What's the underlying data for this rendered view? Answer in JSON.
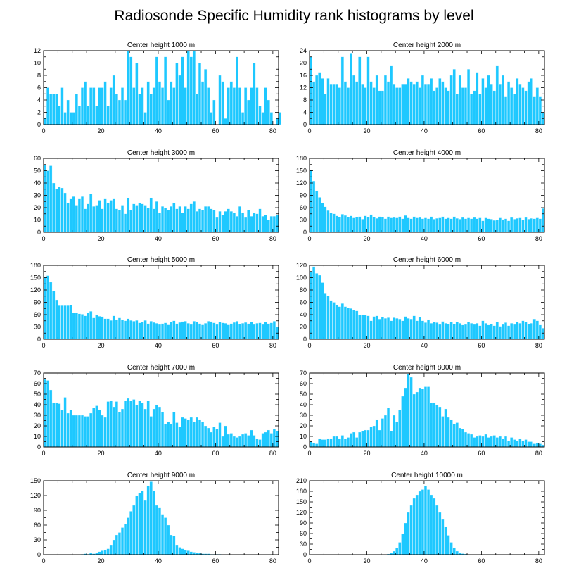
{
  "figure": {
    "title": "Radiosonde Specific Humidity rank histograms by level",
    "bar_color": "#1ec8ff",
    "bar_edge_color": "#e8f8ff"
  },
  "chart_data": [
    {
      "type": "bar",
      "title": "Center height 1000 m",
      "xlim": [
        0,
        82
      ],
      "ylim": [
        0,
        12
      ],
      "xticks": [
        0,
        20,
        40,
        60,
        80
      ],
      "yticks": [
        0,
        2,
        4,
        6,
        8,
        10,
        12
      ],
      "values": [
        1,
        6,
        5,
        5,
        5,
        3,
        6,
        2,
        4,
        2,
        2,
        5,
        3,
        6,
        7,
        3,
        6,
        6,
        3,
        6,
        6,
        7,
        3,
        6,
        8,
        5,
        4,
        6,
        4,
        12,
        11,
        6,
        10,
        5,
        6,
        2,
        7,
        5,
        6,
        11,
        7,
        6,
        11,
        4,
        7,
        6,
        10,
        8,
        11,
        6,
        12,
        11,
        12,
        5,
        10,
        7,
        9,
        6,
        2,
        4,
        0,
        8,
        7,
        1,
        6,
        7,
        6,
        11,
        6,
        2,
        6,
        4,
        6,
        10,
        6,
        3,
        2,
        6,
        4,
        2,
        0,
        1,
        2
      ]
    },
    {
      "type": "bar",
      "title": "Center height 2000 m",
      "xlim": [
        0,
        82
      ],
      "ylim": [
        0,
        24
      ],
      "xticks": [
        0,
        20,
        40,
        60,
        80
      ],
      "yticks": [
        0,
        4,
        8,
        12,
        16,
        20,
        24
      ],
      "values": [
        22,
        14,
        16,
        17,
        15,
        10,
        15,
        13,
        13,
        13,
        12,
        22,
        14,
        12,
        23,
        16,
        14,
        22,
        13,
        12,
        22,
        14,
        12,
        16,
        11,
        11,
        16,
        14,
        19,
        13,
        12,
        12,
        13,
        13,
        15,
        14,
        13,
        14,
        12,
        16,
        13,
        13,
        15,
        11,
        12,
        15,
        14,
        12,
        11,
        16,
        18,
        10,
        16,
        12,
        12,
        18,
        10,
        11,
        17,
        10,
        15,
        12,
        16,
        13,
        11,
        19,
        13,
        16,
        9,
        14,
        12,
        10,
        15,
        13,
        12,
        11,
        14,
        15,
        9,
        12,
        9,
        4
      ]
    },
    {
      "type": "bar",
      "title": "Center height 3000 m",
      "xlim": [
        0,
        82
      ],
      "ylim": [
        0,
        60
      ],
      "xticks": [
        0,
        20,
        40,
        60,
        80
      ],
      "yticks": [
        0,
        10,
        20,
        30,
        40,
        50,
        60
      ],
      "values": [
        55,
        50,
        54,
        40,
        35,
        37,
        36,
        32,
        24,
        27,
        29,
        22,
        27,
        29,
        19,
        23,
        31,
        21,
        22,
        26,
        19,
        27,
        24,
        26,
        27,
        19,
        18,
        22,
        15,
        28,
        18,
        23,
        22,
        24,
        23,
        22,
        20,
        28,
        19,
        25,
        16,
        21,
        20,
        18,
        21,
        24,
        19,
        21,
        16,
        21,
        19,
        23,
        25,
        17,
        19,
        18,
        21,
        21,
        19,
        18,
        12,
        17,
        14,
        17,
        19,
        17,
        16,
        13,
        21,
        16,
        12,
        18,
        13,
        16,
        15,
        19,
        13,
        14,
        10,
        13,
        13,
        14
      ]
    },
    {
      "type": "bar",
      "title": "Center height 4000 m",
      "xlim": [
        0,
        82
      ],
      "ylim": [
        0,
        180
      ],
      "xticks": [
        0,
        20,
        40,
        60,
        80
      ],
      "yticks": [
        0,
        30,
        60,
        90,
        120,
        150,
        180
      ],
      "values": [
        152,
        125,
        100,
        85,
        71,
        62,
        53,
        47,
        45,
        40,
        37,
        44,
        41,
        37,
        40,
        35,
        37,
        38,
        32,
        40,
        37,
        43,
        37,
        34,
        38,
        37,
        33,
        38,
        35,
        36,
        35,
        38,
        33,
        41,
        35,
        33,
        38,
        35,
        36,
        33,
        35,
        33,
        38,
        32,
        34,
        35,
        38,
        33,
        35,
        33,
        38,
        34,
        32,
        36,
        33,
        35,
        33,
        36,
        33,
        35,
        28,
        35,
        33,
        32,
        29,
        30,
        35,
        31,
        33,
        28,
        36,
        32,
        34,
        35,
        30,
        36,
        32,
        34,
        33,
        35,
        33,
        58
      ]
    },
    {
      "type": "bar",
      "title": "Center height 5000 m",
      "xlim": [
        0,
        82
      ],
      "ylim": [
        0,
        180
      ],
      "xticks": [
        0,
        20,
        40,
        60,
        80
      ],
      "yticks": [
        0,
        30,
        60,
        90,
        120,
        150,
        180
      ],
      "values": [
        152,
        155,
        139,
        118,
        96,
        82,
        82,
        82,
        82,
        83,
        64,
        65,
        62,
        61,
        57,
        64,
        68,
        52,
        60,
        56,
        55,
        50,
        50,
        46,
        57,
        48,
        52,
        48,
        45,
        50,
        46,
        44,
        46,
        40,
        42,
        46,
        38,
        44,
        41,
        39,
        36,
        38,
        40,
        35,
        42,
        45,
        38,
        41,
        43,
        44,
        39,
        36,
        44,
        42,
        38,
        35,
        39,
        44,
        43,
        40,
        36,
        42,
        40,
        39,
        35,
        38,
        41,
        44,
        37,
        39,
        41,
        38,
        42,
        36,
        39,
        40,
        36,
        42,
        38,
        40,
        44,
        30
      ]
    },
    {
      "type": "bar",
      "title": "Center height 6000 m",
      "xlim": [
        0,
        82
      ],
      "ylim": [
        0,
        120
      ],
      "xticks": [
        0,
        20,
        40,
        60,
        80
      ],
      "yticks": [
        0,
        20,
        40,
        60,
        80,
        100,
        120
      ],
      "values": [
        109,
        118,
        107,
        104,
        92,
        75,
        70,
        63,
        60,
        56,
        53,
        58,
        53,
        51,
        50,
        47,
        46,
        40,
        40,
        39,
        38,
        30,
        37,
        38,
        33,
        36,
        34,
        35,
        30,
        35,
        34,
        33,
        30,
        37,
        34,
        33,
        38,
        30,
        36,
        30,
        27,
        32,
        26,
        28,
        27,
        24,
        29,
        26,
        25,
        28,
        25,
        28,
        26,
        23,
        24,
        28,
        26,
        24,
        26,
        22,
        30,
        26,
        23,
        25,
        22,
        28,
        21,
        24,
        27,
        22,
        26,
        24,
        28,
        26,
        30,
        28,
        25,
        26,
        33,
        30,
        23,
        18
      ]
    },
    {
      "type": "bar",
      "title": "Center height 7000 m",
      "xlim": [
        0,
        82
      ],
      "ylim": [
        0,
        70
      ],
      "xticks": [
        0,
        20,
        40,
        60,
        80
      ],
      "yticks": [
        0,
        10,
        20,
        30,
        40,
        50,
        60,
        70
      ],
      "values": [
        64,
        63,
        54,
        42,
        42,
        41,
        35,
        47,
        32,
        35,
        30,
        30,
        30,
        30,
        29,
        29,
        32,
        37,
        39,
        35,
        30,
        28,
        43,
        44,
        38,
        43,
        33,
        36,
        44,
        46,
        44,
        45,
        40,
        44,
        42,
        36,
        44,
        29,
        36,
        40,
        38,
        33,
        22,
        24,
        22,
        33,
        23,
        19,
        28,
        27,
        26,
        28,
        24,
        28,
        26,
        24,
        20,
        18,
        14,
        19,
        17,
        23,
        10,
        20,
        12,
        13,
        10,
        9,
        10,
        12,
        13,
        11,
        16,
        11,
        8,
        7,
        13,
        14,
        16,
        13,
        17,
        15
      ]
    },
    {
      "type": "bar",
      "title": "Center height 8000 m",
      "xlim": [
        0,
        82
      ],
      "ylim": [
        0,
        70
      ],
      "xticks": [
        0,
        20,
        40,
        60,
        80
      ],
      "yticks": [
        0,
        10,
        20,
        30,
        40,
        50,
        60,
        70
      ],
      "values": [
        5,
        4,
        3,
        8,
        7,
        7,
        8,
        8,
        10,
        10,
        8,
        11,
        8,
        9,
        13,
        14,
        9,
        14,
        15,
        16,
        16,
        19,
        20,
        26,
        16,
        27,
        30,
        37,
        15,
        30,
        24,
        35,
        48,
        56,
        69,
        66,
        50,
        52,
        56,
        55,
        57,
        57,
        42,
        42,
        40,
        38,
        29,
        36,
        28,
        26,
        22,
        23,
        18,
        17,
        14,
        13,
        12,
        9,
        10,
        11,
        10,
        12,
        9,
        10,
        11,
        9,
        10,
        8,
        10,
        6,
        9,
        7,
        6,
        8,
        6,
        7,
        5,
        5,
        3,
        4,
        3,
        2
      ]
    },
    {
      "type": "bar",
      "title": "Center height 9000 m",
      "xlim": [
        0,
        82
      ],
      "ylim": [
        0,
        150
      ],
      "xticks": [
        0,
        20,
        40,
        60,
        80
      ],
      "yticks": [
        0,
        30,
        60,
        90,
        120,
        150
      ],
      "values": [
        0,
        0,
        0,
        0,
        0,
        0,
        0,
        0,
        0,
        0,
        0,
        0,
        0,
        1,
        2,
        1,
        3,
        2,
        3,
        6,
        8,
        10,
        12,
        20,
        30,
        40,
        45,
        55,
        62,
        75,
        88,
        100,
        120,
        125,
        130,
        110,
        140,
        148,
        130,
        100,
        96,
        82,
        75,
        60,
        40,
        38,
        20,
        15,
        12,
        10,
        8,
        6,
        5,
        4,
        3,
        2,
        2,
        2,
        1,
        1,
        1,
        1,
        0,
        0,
        0,
        0,
        0,
        0,
        0,
        0,
        0,
        0,
        0,
        0,
        0,
        0,
        0,
        0,
        0,
        0,
        0,
        0
      ]
    },
    {
      "type": "bar",
      "title": "Center height 10000 m",
      "xlim": [
        0,
        82
      ],
      "ylim": [
        0,
        210
      ],
      "xticks": [
        0,
        20,
        40,
        60,
        80
      ],
      "yticks": [
        0,
        30,
        60,
        90,
        120,
        150,
        180,
        210
      ],
      "values": [
        0,
        0,
        0,
        0,
        0,
        0,
        0,
        0,
        0,
        0,
        0,
        0,
        0,
        0,
        0,
        0,
        0,
        0,
        0,
        0,
        0,
        0,
        0,
        0,
        0,
        0,
        0,
        2,
        5,
        10,
        20,
        35,
        60,
        90,
        120,
        140,
        160,
        170,
        180,
        185,
        195,
        185,
        170,
        160,
        140,
        120,
        100,
        80,
        55,
        35,
        20,
        10,
        5,
        3,
        2,
        1,
        0,
        0,
        0,
        0,
        0,
        0,
        0,
        0,
        0,
        0,
        0,
        0,
        0,
        0,
        0,
        0,
        0,
        0,
        0,
        0,
        0,
        0,
        0,
        0,
        0,
        0
      ]
    }
  ]
}
